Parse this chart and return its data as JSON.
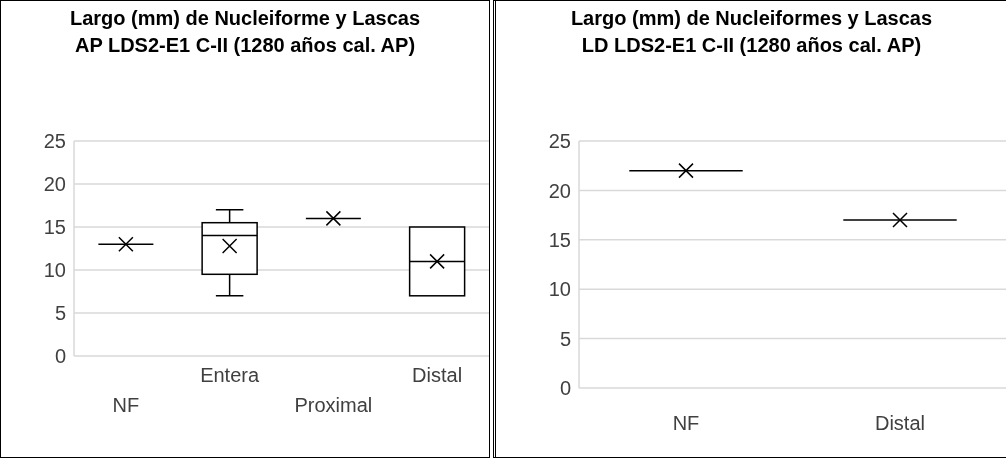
{
  "chart_data": [
    {
      "type": "box",
      "title": "Largo (mm) de Nucleiforme y Lascas AP LDS2-E1 C-II (1280 años cal. AP)",
      "categories": [
        "NF",
        "Entera",
        "Proximal",
        "Distal"
      ],
      "series": [
        {
          "color": "#000000",
          "boxes": [
            {
              "low": 13,
              "q1": 13,
              "median": 13,
              "q3": 13,
              "high": 13,
              "mean": 13
            },
            {
              "low": 7,
              "q1": 9.5,
              "median": 14,
              "q3": 15.5,
              "high": 17,
              "mean": 12.8
            },
            {
              "low": 16,
              "q1": 16,
              "median": 16,
              "q3": 16,
              "high": 16,
              "mean": 16
            },
            {
              "low": 7,
              "q1": 7,
              "median": 11,
              "q3": 15,
              "high": 15,
              "mean": 11
            }
          ]
        }
      ],
      "ylim": [
        0,
        25
      ],
      "yticks": [
        0,
        5,
        10,
        15,
        20,
        25
      ],
      "grid": "y",
      "marker": "cross"
    },
    {
      "type": "box",
      "title": "Largo (mm) de Nucleiformes y Lascas LD LDS2-E1 C-II (1280 años cal. AP)",
      "categories": [
        "NF",
        "Distal"
      ],
      "series": [
        {
          "color": "#000000",
          "boxes": [
            {
              "low": 22,
              "q1": 22,
              "median": 22,
              "q3": 22,
              "high": 22,
              "mean": 22
            },
            {
              "low": 17,
              "q1": 17,
              "median": 17,
              "q3": 17,
              "high": 17,
              "mean": 17
            }
          ]
        }
      ],
      "ylim": [
        0,
        25
      ],
      "yticks": [
        0,
        5,
        10,
        15,
        20,
        25
      ],
      "grid": "y",
      "marker": "cross"
    }
  ]
}
